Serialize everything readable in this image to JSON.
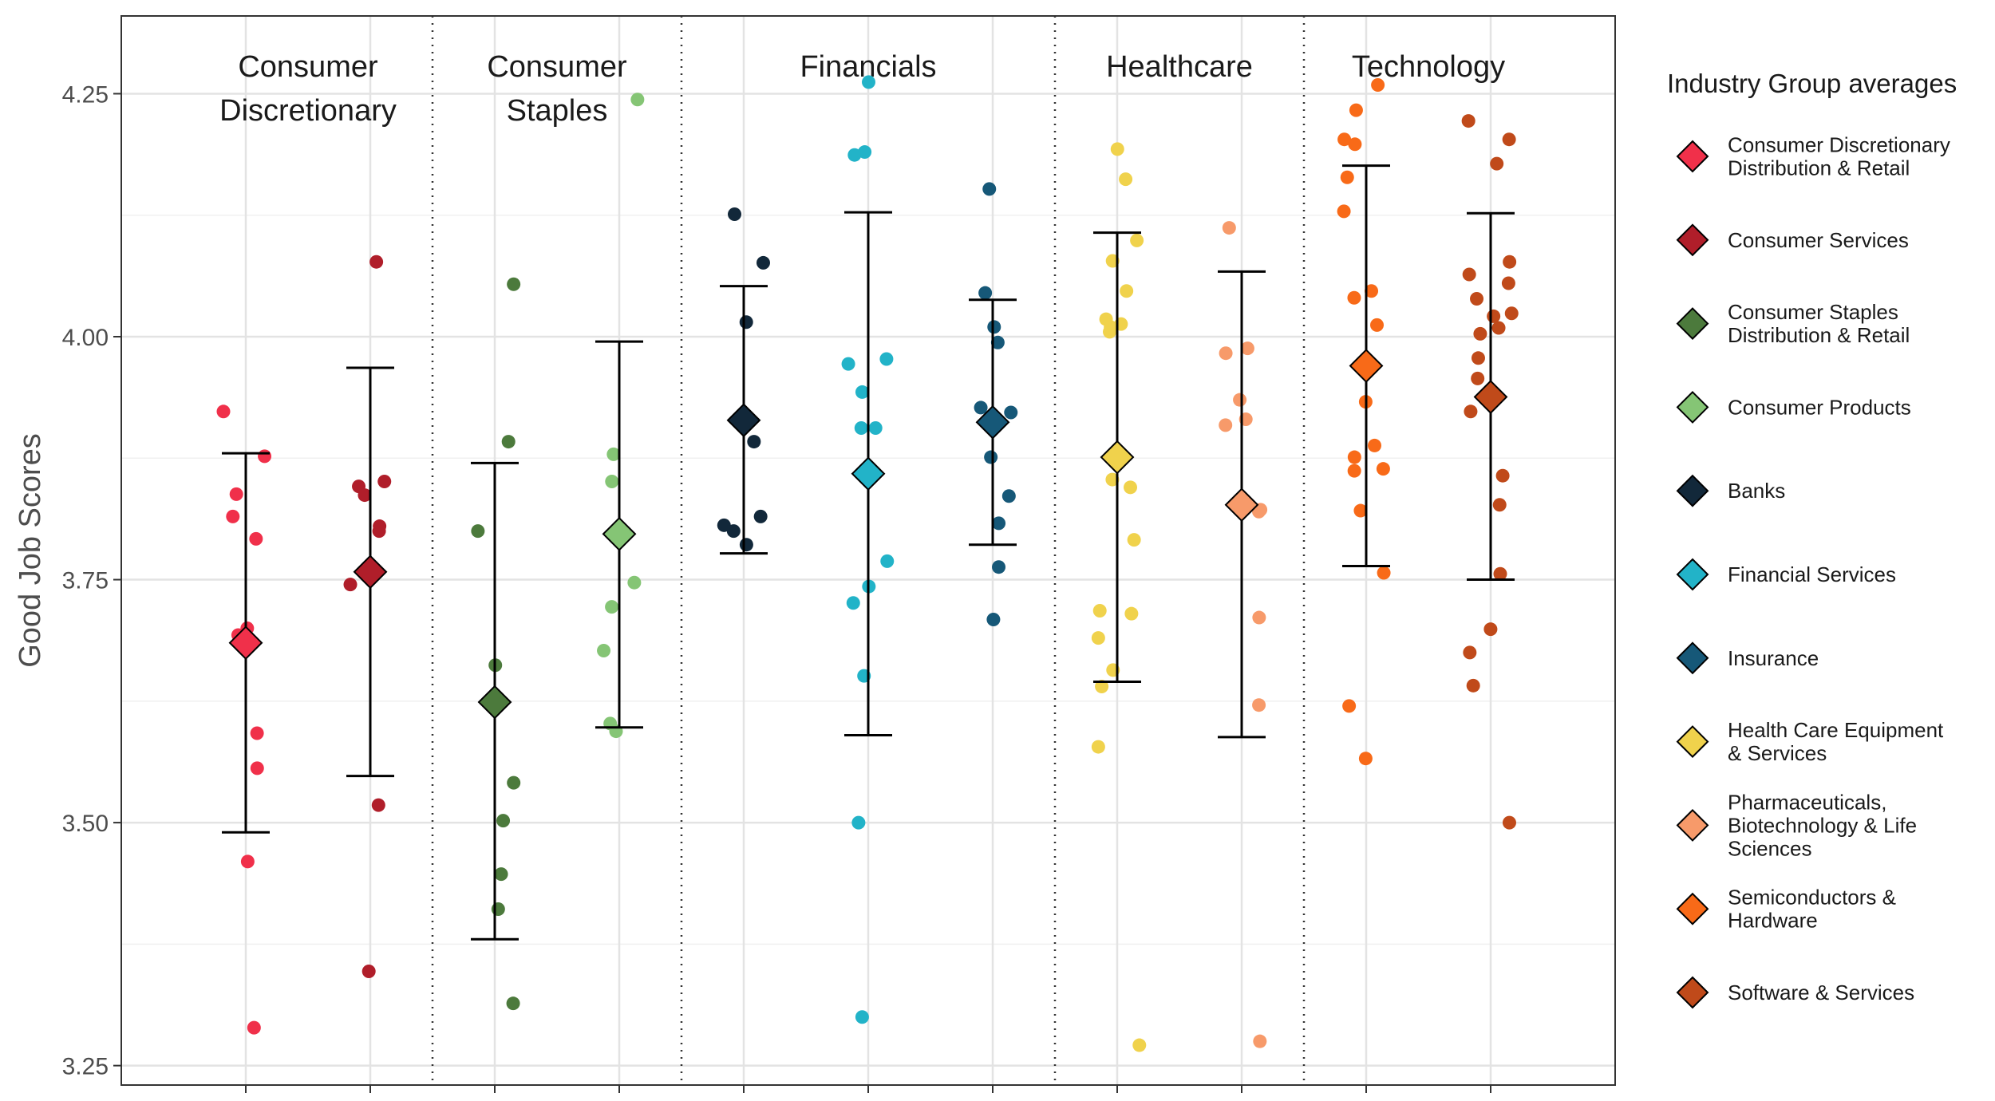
{
  "chart_data": {
    "type": "scatter",
    "ylabel": "Good Job Scores",
    "ylim": [
      3.23,
      4.33
    ],
    "y_ticks": [
      "3.25",
      "3.50",
      "3.75",
      "4.00",
      "4.25"
    ],
    "grid": true,
    "legend": {
      "title": "Industry Group averages",
      "placement": "right"
    },
    "sectors": [
      {
        "label": [
          "Consumer",
          "Discretionary"
        ],
        "groups": [
          0,
          1
        ]
      },
      {
        "label": [
          "Consumer",
          "Staples"
        ],
        "groups": [
          2,
          3
        ]
      },
      {
        "label": [
          "Financials"
        ],
        "groups": [
          4,
          5,
          6
        ]
      },
      {
        "label": [
          "Healthcare"
        ],
        "groups": [
          7,
          8
        ]
      },
      {
        "label": [
          "Technology"
        ],
        "groups": [
          9,
          10
        ]
      }
    ],
    "series": [
      {
        "name": [
          "Consumer Discretionary",
          "Distribution & Retail"
        ],
        "color": "#f0304a",
        "mean": 3.685,
        "low": 3.49,
        "high": 3.88,
        "points": [
          3.923,
          3.877,
          3.838,
          3.815,
          3.792,
          3.7,
          3.693,
          3.592,
          3.556,
          3.46,
          3.289
        ]
      },
      {
        "name": [
          "Consumer Services"
        ],
        "color": "#b01e2a",
        "mean": 3.758,
        "low": 3.548,
        "high": 3.968,
        "points": [
          4.077,
          3.851,
          3.846,
          3.837,
          3.805,
          3.8,
          3.745,
          3.518,
          3.347
        ]
      },
      {
        "name": [
          "Consumer Staples",
          "Distribution & Retail"
        ],
        "color": "#4c7a3c",
        "mean": 3.624,
        "low": 3.38,
        "high": 3.87,
        "points": [
          4.054,
          3.892,
          3.8,
          3.662,
          3.541,
          3.502,
          3.447,
          3.411,
          3.314
        ]
      },
      {
        "name": [
          "Consumer Products"
        ],
        "color": "#85c575",
        "mean": 3.797,
        "low": 3.598,
        "high": 3.995,
        "points": [
          4.244,
          3.879,
          3.851,
          3.747,
          3.722,
          3.677,
          3.602,
          3.594
        ]
      },
      {
        "name": [
          "Banks"
        ],
        "color": "#12283a",
        "mean": 3.914,
        "low": 3.777,
        "high": 4.052,
        "points": [
          4.126,
          4.076,
          4.015,
          3.892,
          3.815,
          3.806,
          3.8,
          3.786
        ]
      },
      {
        "name": [
          "Financial Services"
        ],
        "color": "#22b3c8",
        "mean": 3.859,
        "low": 3.59,
        "high": 4.128,
        "points": [
          4.262,
          4.19,
          4.187,
          3.977,
          3.972,
          3.943,
          3.906,
          3.906,
          3.769,
          3.743,
          3.726,
          3.651,
          3.5,
          3.3
        ]
      },
      {
        "name": [
          "Insurance"
        ],
        "color": "#165878",
        "mean": 3.912,
        "low": 3.786,
        "high": 4.038,
        "points": [
          4.152,
          4.045,
          4.01,
          3.994,
          3.927,
          3.922,
          3.876,
          3.836,
          3.808,
          3.763,
          3.709
        ]
      },
      {
        "name": [
          "Health Care Equipment",
          "& Services"
        ],
        "color": "#f0d24c",
        "mean": 3.876,
        "low": 3.645,
        "high": 4.107,
        "points": [
          4.193,
          4.162,
          4.099,
          4.078,
          4.047,
          4.018,
          4.013,
          4.01,
          4.005,
          3.853,
          3.845,
          3.791,
          3.718,
          3.715,
          3.69,
          3.657,
          3.64,
          3.578,
          3.271
        ]
      },
      {
        "name": [
          "Pharmaceuticals,",
          "Biotechnology & Life",
          "Sciences"
        ],
        "color": "#f79a6a",
        "mean": 3.827,
        "low": 3.588,
        "high": 4.067,
        "points": [
          4.112,
          3.988,
          3.983,
          3.935,
          3.915,
          3.909,
          3.822,
          3.82,
          3.711,
          3.621,
          3.275
        ]
      },
      {
        "name": [
          "Semiconductors &",
          "Hardware"
        ],
        "color": "#f86a18",
        "mean": 3.97,
        "low": 3.764,
        "high": 4.176,
        "points": [
          4.259,
          4.233,
          4.203,
          4.198,
          4.164,
          4.129,
          4.047,
          4.04,
          4.012,
          3.933,
          3.888,
          3.876,
          3.864,
          3.862,
          3.821,
          3.757,
          3.62,
          3.566
        ]
      },
      {
        "name": [
          "Software & Services"
        ],
        "color": "#c04a1a",
        "mean": 3.938,
        "low": 3.75,
        "high": 4.127,
        "points": [
          4.222,
          4.203,
          4.178,
          4.077,
          4.064,
          4.055,
          4.039,
          4.024,
          4.021,
          4.009,
          4.003,
          3.978,
          3.957,
          3.938,
          3.923,
          3.857,
          3.827,
          3.756,
          3.699,
          3.675,
          3.641,
          3.5
        ]
      }
    ]
  }
}
